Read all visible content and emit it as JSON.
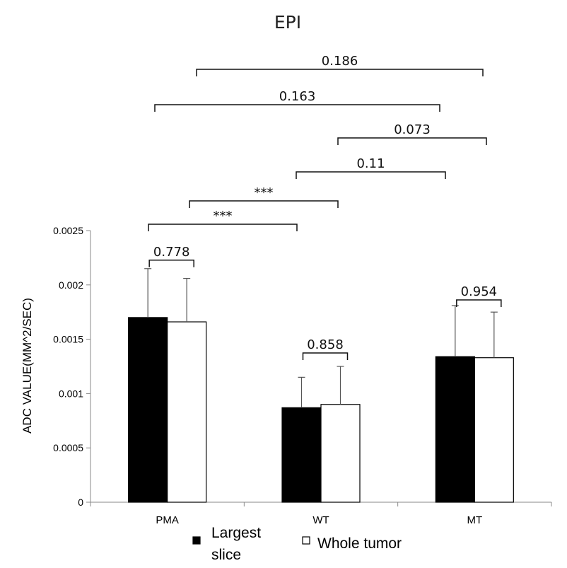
{
  "chart_data": {
    "type": "bar",
    "title": "EPI",
    "ylabel": "ADC VALUE(MM^2/SEC)",
    "xlabel": "",
    "categories": [
      "PMA",
      "WT",
      "MT"
    ],
    "ylim": [
      0,
      0.0025
    ],
    "yticks": [
      "0",
      "0.0005",
      "0.001",
      "0.0015",
      "0.002",
      "0.0025"
    ],
    "series": [
      {
        "name": "Largest slice",
        "values": [
          0.0017,
          0.00087,
          0.00134
        ],
        "errors": [
          0.00045,
          0.00028,
          0.00047
        ],
        "color": "#000000"
      },
      {
        "name": "Whole tumor",
        "values": [
          0.00166,
          0.0009,
          0.00133
        ],
        "errors": [
          0.0004,
          0.00035,
          0.00042
        ],
        "color": "#ffffff"
      }
    ],
    "within_group_pvalues": [
      "0.778",
      "0.858",
      "0.954"
    ],
    "between_group_comparisons": [
      {
        "label": "0.186",
        "from": "PMA",
        "to": "MT"
      },
      {
        "label": "0.163",
        "from": "PMA",
        "to": "MT"
      },
      {
        "label": "0.073",
        "from": "WT",
        "to": "MT"
      },
      {
        "label": "0.11",
        "from": "WT",
        "to": "MT"
      },
      {
        "label": "***",
        "from": "PMA",
        "to": "WT"
      },
      {
        "label": "***",
        "from": "PMA",
        "to": "WT"
      }
    ],
    "legend": {
      "position": "bottom",
      "items": [
        "Largest\nslice",
        "Whole tumor"
      ]
    },
    "grid": false
  }
}
